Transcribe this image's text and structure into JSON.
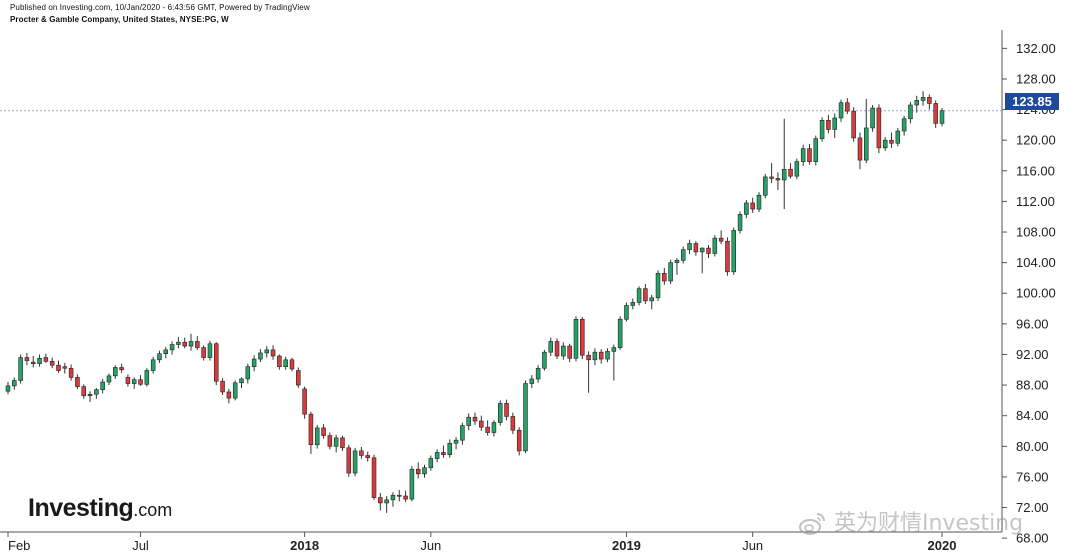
{
  "header": {
    "published": "Published on Investing.com, 10/Jan/2020 - 6:43:56 GMT, Powered by TradingView",
    "symbol": "Procter & Gamble Company, United States, NYSE:PG, W"
  },
  "logo": {
    "brand": "Investing",
    "suffix": ".com"
  },
  "watermark": {
    "text": "英为财情Investing",
    "icon": "weibo-icon"
  },
  "colors": {
    "up": "#26a269",
    "down": "#d93b3b",
    "wick": "#333333",
    "last_line": "#9aa7e6",
    "price_tag": "#1f4a9a"
  },
  "chart_data": {
    "type": "candlestick",
    "title": "Procter & Gamble Company, United States, NYSE:PG, W",
    "interval": "W",
    "ylim": [
      68.8,
      134.4
    ],
    "y_ticks": [
      "132.00",
      "128.00",
      "124.00",
      "120.00",
      "116.00",
      "112.00",
      "108.00",
      "104.00",
      "100.00",
      "96.00",
      "92.00",
      "88.00",
      "84.00",
      "80.00",
      "76.00",
      "72.00",
      "68.00"
    ],
    "x_ticks": [
      {
        "label": "Feb",
        "index": 0,
        "bold": false
      },
      {
        "label": "Jul",
        "index": 21,
        "bold": false
      },
      {
        "label": "2018",
        "index": 47,
        "bold": true
      },
      {
        "label": "Jun",
        "index": 67,
        "bold": false
      },
      {
        "label": "2019",
        "index": 98,
        "bold": true
      },
      {
        "label": "Jun",
        "index": 118,
        "bold": false
      },
      {
        "label": "2020",
        "index": 148,
        "bold": true
      }
    ],
    "last_price": "123.85",
    "candles": [
      {
        "o": 87.2,
        "h": 88.4,
        "l": 86.8,
        "c": 87.9
      },
      {
        "o": 87.9,
        "h": 89.0,
        "l": 87.4,
        "c": 88.6
      },
      {
        "o": 88.6,
        "h": 92.0,
        "l": 88.2,
        "c": 91.6
      },
      {
        "o": 91.6,
        "h": 92.2,
        "l": 90.6,
        "c": 91.2
      },
      {
        "o": 91.0,
        "h": 91.8,
        "l": 90.3,
        "c": 90.8
      },
      {
        "o": 90.8,
        "h": 92.0,
        "l": 90.4,
        "c": 91.5
      },
      {
        "o": 91.6,
        "h": 92.1,
        "l": 90.9,
        "c": 91.1
      },
      {
        "o": 91.1,
        "h": 91.6,
        "l": 90.2,
        "c": 90.6
      },
      {
        "o": 90.6,
        "h": 91.2,
        "l": 89.6,
        "c": 89.9
      },
      {
        "o": 90.4,
        "h": 90.9,
        "l": 89.5,
        "c": 90.2
      },
      {
        "o": 90.2,
        "h": 90.7,
        "l": 88.6,
        "c": 89.0
      },
      {
        "o": 89.0,
        "h": 89.4,
        "l": 87.5,
        "c": 87.8
      },
      {
        "o": 87.8,
        "h": 88.1,
        "l": 86.2,
        "c": 86.6
      },
      {
        "o": 86.6,
        "h": 87.2,
        "l": 85.8,
        "c": 86.8
      },
      {
        "o": 86.8,
        "h": 87.6,
        "l": 86.2,
        "c": 87.4
      },
      {
        "o": 87.4,
        "h": 88.8,
        "l": 86.9,
        "c": 88.4
      },
      {
        "o": 88.4,
        "h": 89.5,
        "l": 88.0,
        "c": 89.2
      },
      {
        "o": 89.2,
        "h": 90.6,
        "l": 88.8,
        "c": 90.3
      },
      {
        "o": 90.3,
        "h": 90.8,
        "l": 89.6,
        "c": 90.0
      },
      {
        "o": 89.0,
        "h": 89.4,
        "l": 87.8,
        "c": 88.2
      },
      {
        "o": 88.2,
        "h": 89.0,
        "l": 87.5,
        "c": 88.7
      },
      {
        "o": 88.7,
        "h": 89.3,
        "l": 87.9,
        "c": 88.1
      },
      {
        "o": 88.1,
        "h": 90.2,
        "l": 87.8,
        "c": 89.9
      },
      {
        "o": 89.9,
        "h": 91.7,
        "l": 89.5,
        "c": 91.3
      },
      {
        "o": 91.3,
        "h": 92.5,
        "l": 90.9,
        "c": 92.1
      },
      {
        "o": 92.1,
        "h": 93.0,
        "l": 91.5,
        "c": 92.6
      },
      {
        "o": 92.6,
        "h": 93.7,
        "l": 92.0,
        "c": 93.3
      },
      {
        "o": 93.3,
        "h": 94.3,
        "l": 92.8,
        "c": 93.6
      },
      {
        "o": 93.6,
        "h": 94.2,
        "l": 92.8,
        "c": 93.1
      },
      {
        "o": 93.1,
        "h": 94.7,
        "l": 92.5,
        "c": 93.7
      },
      {
        "o": 93.7,
        "h": 94.4,
        "l": 92.6,
        "c": 92.9
      },
      {
        "o": 92.9,
        "h": 93.2,
        "l": 91.2,
        "c": 91.6
      },
      {
        "o": 91.6,
        "h": 93.8,
        "l": 91.2,
        "c": 93.4
      },
      {
        "o": 93.4,
        "h": 93.6,
        "l": 88.0,
        "c": 88.5
      },
      {
        "o": 88.5,
        "h": 88.9,
        "l": 86.7,
        "c": 87.1
      },
      {
        "o": 87.1,
        "h": 87.5,
        "l": 85.6,
        "c": 86.3
      },
      {
        "o": 86.3,
        "h": 88.6,
        "l": 86.0,
        "c": 88.3
      },
      {
        "o": 88.3,
        "h": 89.0,
        "l": 87.6,
        "c": 88.8
      },
      {
        "o": 88.8,
        "h": 90.8,
        "l": 88.2,
        "c": 90.4
      },
      {
        "o": 90.4,
        "h": 91.9,
        "l": 89.8,
        "c": 91.4
      },
      {
        "o": 91.4,
        "h": 92.7,
        "l": 91.0,
        "c": 92.2
      },
      {
        "o": 92.2,
        "h": 93.1,
        "l": 91.6,
        "c": 92.6
      },
      {
        "o": 92.6,
        "h": 93.2,
        "l": 91.3,
        "c": 91.8
      },
      {
        "o": 91.8,
        "h": 92.0,
        "l": 90.0,
        "c": 90.4
      },
      {
        "o": 90.4,
        "h": 91.7,
        "l": 90.0,
        "c": 91.3
      },
      {
        "o": 91.3,
        "h": 91.6,
        "l": 89.8,
        "c": 90.1
      },
      {
        "o": 89.9,
        "h": 90.3,
        "l": 87.6,
        "c": 88.0
      },
      {
        "o": 87.5,
        "h": 87.8,
        "l": 83.6,
        "c": 84.2
      },
      {
        "o": 84.2,
        "h": 84.5,
        "l": 79.0,
        "c": 80.2
      },
      {
        "o": 80.2,
        "h": 82.8,
        "l": 79.7,
        "c": 82.4
      },
      {
        "o": 82.4,
        "h": 82.9,
        "l": 81.0,
        "c": 81.4
      },
      {
        "o": 81.4,
        "h": 81.8,
        "l": 79.6,
        "c": 80.0
      },
      {
        "o": 80.0,
        "h": 81.5,
        "l": 79.2,
        "c": 81.1
      },
      {
        "o": 81.1,
        "h": 81.4,
        "l": 79.4,
        "c": 79.8
      },
      {
        "o": 79.8,
        "h": 80.2,
        "l": 76.0,
        "c": 76.5
      },
      {
        "o": 76.5,
        "h": 79.8,
        "l": 76.1,
        "c": 79.4
      },
      {
        "o": 79.4,
        "h": 79.9,
        "l": 78.4,
        "c": 78.8
      },
      {
        "o": 78.8,
        "h": 79.3,
        "l": 78.0,
        "c": 78.5
      },
      {
        "o": 78.5,
        "h": 78.9,
        "l": 73.0,
        "c": 73.3
      },
      {
        "o": 73.3,
        "h": 73.9,
        "l": 71.6,
        "c": 72.6
      },
      {
        "o": 72.6,
        "h": 73.5,
        "l": 71.3,
        "c": 73.0
      },
      {
        "o": 73.0,
        "h": 74.0,
        "l": 72.1,
        "c": 73.6
      },
      {
        "o": 73.6,
        "h": 74.3,
        "l": 72.8,
        "c": 73.5
      },
      {
        "o": 73.5,
        "h": 74.2,
        "l": 72.7,
        "c": 73.1
      },
      {
        "o": 73.1,
        "h": 77.4,
        "l": 72.8,
        "c": 77.0
      },
      {
        "o": 77.0,
        "h": 77.9,
        "l": 75.8,
        "c": 76.4
      },
      {
        "o": 76.4,
        "h": 77.6,
        "l": 75.9,
        "c": 77.2
      },
      {
        "o": 77.2,
        "h": 78.8,
        "l": 76.8,
        "c": 78.4
      },
      {
        "o": 78.4,
        "h": 79.6,
        "l": 77.9,
        "c": 79.2
      },
      {
        "o": 79.2,
        "h": 80.1,
        "l": 78.5,
        "c": 78.9
      },
      {
        "o": 78.9,
        "h": 80.9,
        "l": 78.5,
        "c": 80.4
      },
      {
        "o": 80.4,
        "h": 81.2,
        "l": 79.6,
        "c": 80.8
      },
      {
        "o": 80.8,
        "h": 83.1,
        "l": 80.2,
        "c": 82.7
      },
      {
        "o": 82.7,
        "h": 84.3,
        "l": 82.1,
        "c": 83.8
      },
      {
        "o": 83.8,
        "h": 84.4,
        "l": 82.8,
        "c": 83.3
      },
      {
        "o": 83.3,
        "h": 84.0,
        "l": 82.0,
        "c": 82.5
      },
      {
        "o": 82.5,
        "h": 83.4,
        "l": 81.4,
        "c": 81.8
      },
      {
        "o": 81.8,
        "h": 83.4,
        "l": 81.3,
        "c": 83.1
      },
      {
        "o": 83.1,
        "h": 86.0,
        "l": 82.7,
        "c": 85.6
      },
      {
        "o": 85.6,
        "h": 86.1,
        "l": 83.4,
        "c": 83.9
      },
      {
        "o": 83.9,
        "h": 84.4,
        "l": 81.6,
        "c": 82.1
      },
      {
        "o": 82.1,
        "h": 82.5,
        "l": 78.8,
        "c": 79.4
      },
      {
        "o": 79.4,
        "h": 88.6,
        "l": 79.1,
        "c": 88.2
      },
      {
        "o": 88.2,
        "h": 89.3,
        "l": 87.6,
        "c": 88.8
      },
      {
        "o": 88.8,
        "h": 90.6,
        "l": 88.3,
        "c": 90.2
      },
      {
        "o": 90.2,
        "h": 92.6,
        "l": 89.9,
        "c": 92.3
      },
      {
        "o": 92.3,
        "h": 94.2,
        "l": 91.8,
        "c": 93.7
      },
      {
        "o": 93.7,
        "h": 94.1,
        "l": 91.4,
        "c": 91.8
      },
      {
        "o": 91.8,
        "h": 93.6,
        "l": 91.3,
        "c": 93.1
      },
      {
        "o": 93.1,
        "h": 93.4,
        "l": 91.0,
        "c": 91.5
      },
      {
        "o": 91.5,
        "h": 97.0,
        "l": 91.1,
        "c": 96.6
      },
      {
        "o": 96.6,
        "h": 96.9,
        "l": 91.4,
        "c": 91.9
      },
      {
        "o": 91.9,
        "h": 92.4,
        "l": 87.0,
        "c": 91.3
      },
      {
        "o": 91.3,
        "h": 92.8,
        "l": 90.6,
        "c": 92.3
      },
      {
        "o": 92.3,
        "h": 92.7,
        "l": 90.8,
        "c": 91.4
      },
      {
        "o": 91.4,
        "h": 92.8,
        "l": 91.0,
        "c": 92.4
      },
      {
        "o": 92.4,
        "h": 93.3,
        "l": 88.6,
        "c": 92.9
      },
      {
        "o": 92.9,
        "h": 97.0,
        "l": 92.6,
        "c": 96.6
      },
      {
        "o": 96.6,
        "h": 98.8,
        "l": 96.3,
        "c": 98.4
      },
      {
        "o": 98.4,
        "h": 99.3,
        "l": 97.9,
        "c": 98.8
      },
      {
        "o": 98.8,
        "h": 100.9,
        "l": 98.4,
        "c": 100.6
      },
      {
        "o": 100.6,
        "h": 101.2,
        "l": 98.6,
        "c": 99.0
      },
      {
        "o": 99.0,
        "h": 99.8,
        "l": 97.9,
        "c": 99.4
      },
      {
        "o": 99.4,
        "h": 103.0,
        "l": 99.0,
        "c": 102.6
      },
      {
        "o": 102.6,
        "h": 103.3,
        "l": 101.1,
        "c": 101.6
      },
      {
        "o": 101.6,
        "h": 104.4,
        "l": 101.2,
        "c": 104.0
      },
      {
        "o": 104.0,
        "h": 104.6,
        "l": 102.4,
        "c": 104.3
      },
      {
        "o": 104.3,
        "h": 106.1,
        "l": 103.9,
        "c": 105.7
      },
      {
        "o": 105.7,
        "h": 107.0,
        "l": 105.1,
        "c": 106.5
      },
      {
        "o": 106.5,
        "h": 106.8,
        "l": 104.9,
        "c": 105.4
      },
      {
        "o": 105.4,
        "h": 106.0,
        "l": 102.6,
        "c": 105.9
      },
      {
        "o": 105.9,
        "h": 106.3,
        "l": 104.6,
        "c": 105.2
      },
      {
        "o": 105.2,
        "h": 107.6,
        "l": 104.8,
        "c": 107.2
      },
      {
        "o": 107.2,
        "h": 108.2,
        "l": 106.4,
        "c": 106.8
      },
      {
        "o": 106.8,
        "h": 107.3,
        "l": 102.3,
        "c": 102.8
      },
      {
        "o": 102.8,
        "h": 108.6,
        "l": 102.4,
        "c": 108.2
      },
      {
        "o": 108.2,
        "h": 110.7,
        "l": 107.8,
        "c": 110.3
      },
      {
        "o": 110.3,
        "h": 112.2,
        "l": 109.8,
        "c": 111.8
      },
      {
        "o": 111.8,
        "h": 112.5,
        "l": 110.5,
        "c": 111.0
      },
      {
        "o": 111.0,
        "h": 113.2,
        "l": 110.6,
        "c": 112.8
      },
      {
        "o": 112.8,
        "h": 115.6,
        "l": 112.4,
        "c": 115.2
      },
      {
        "o": 115.2,
        "h": 117.0,
        "l": 114.4,
        "c": 115.0
      },
      {
        "o": 115.0,
        "h": 115.8,
        "l": 113.5,
        "c": 114.8
      },
      {
        "o": 114.8,
        "h": 122.8,
        "l": 111.0,
        "c": 116.2
      },
      {
        "o": 116.2,
        "h": 117.0,
        "l": 115.0,
        "c": 115.3
      },
      {
        "o": 115.3,
        "h": 117.6,
        "l": 114.9,
        "c": 117.2
      },
      {
        "o": 117.2,
        "h": 119.4,
        "l": 116.6,
        "c": 118.9
      },
      {
        "o": 118.9,
        "h": 119.5,
        "l": 116.8,
        "c": 117.2
      },
      {
        "o": 117.2,
        "h": 120.6,
        "l": 116.7,
        "c": 120.2
      },
      {
        "o": 120.2,
        "h": 123.0,
        "l": 119.8,
        "c": 122.6
      },
      {
        "o": 122.6,
        "h": 123.3,
        "l": 120.9,
        "c": 121.4
      },
      {
        "o": 121.4,
        "h": 123.5,
        "l": 120.3,
        "c": 122.9
      },
      {
        "o": 122.9,
        "h": 125.3,
        "l": 122.4,
        "c": 124.9
      },
      {
        "o": 124.9,
        "h": 125.5,
        "l": 123.4,
        "c": 123.8
      },
      {
        "o": 123.8,
        "h": 124.3,
        "l": 119.8,
        "c": 120.3
      },
      {
        "o": 120.3,
        "h": 121.0,
        "l": 116.2,
        "c": 117.4
      },
      {
        "o": 117.4,
        "h": 125.4,
        "l": 117.0,
        "c": 121.6
      },
      {
        "o": 121.6,
        "h": 124.6,
        "l": 121.1,
        "c": 124.2
      },
      {
        "o": 124.2,
        "h": 124.7,
        "l": 118.3,
        "c": 119.0
      },
      {
        "o": 119.0,
        "h": 120.4,
        "l": 118.6,
        "c": 120.0
      },
      {
        "o": 120.0,
        "h": 121.0,
        "l": 119.0,
        "c": 119.6
      },
      {
        "o": 119.6,
        "h": 121.6,
        "l": 119.2,
        "c": 121.2
      },
      {
        "o": 121.2,
        "h": 123.2,
        "l": 120.6,
        "c": 122.8
      },
      {
        "o": 122.8,
        "h": 125.0,
        "l": 122.2,
        "c": 124.6
      },
      {
        "o": 124.6,
        "h": 125.8,
        "l": 123.6,
        "c": 125.2
      },
      {
        "o": 125.2,
        "h": 126.4,
        "l": 124.5,
        "c": 125.6
      },
      {
        "o": 125.6,
        "h": 126.0,
        "l": 124.0,
        "c": 124.8
      },
      {
        "o": 124.8,
        "h": 125.2,
        "l": 121.6,
        "c": 122.2
      },
      {
        "o": 122.2,
        "h": 124.2,
        "l": 121.8,
        "c": 123.85
      }
    ]
  }
}
